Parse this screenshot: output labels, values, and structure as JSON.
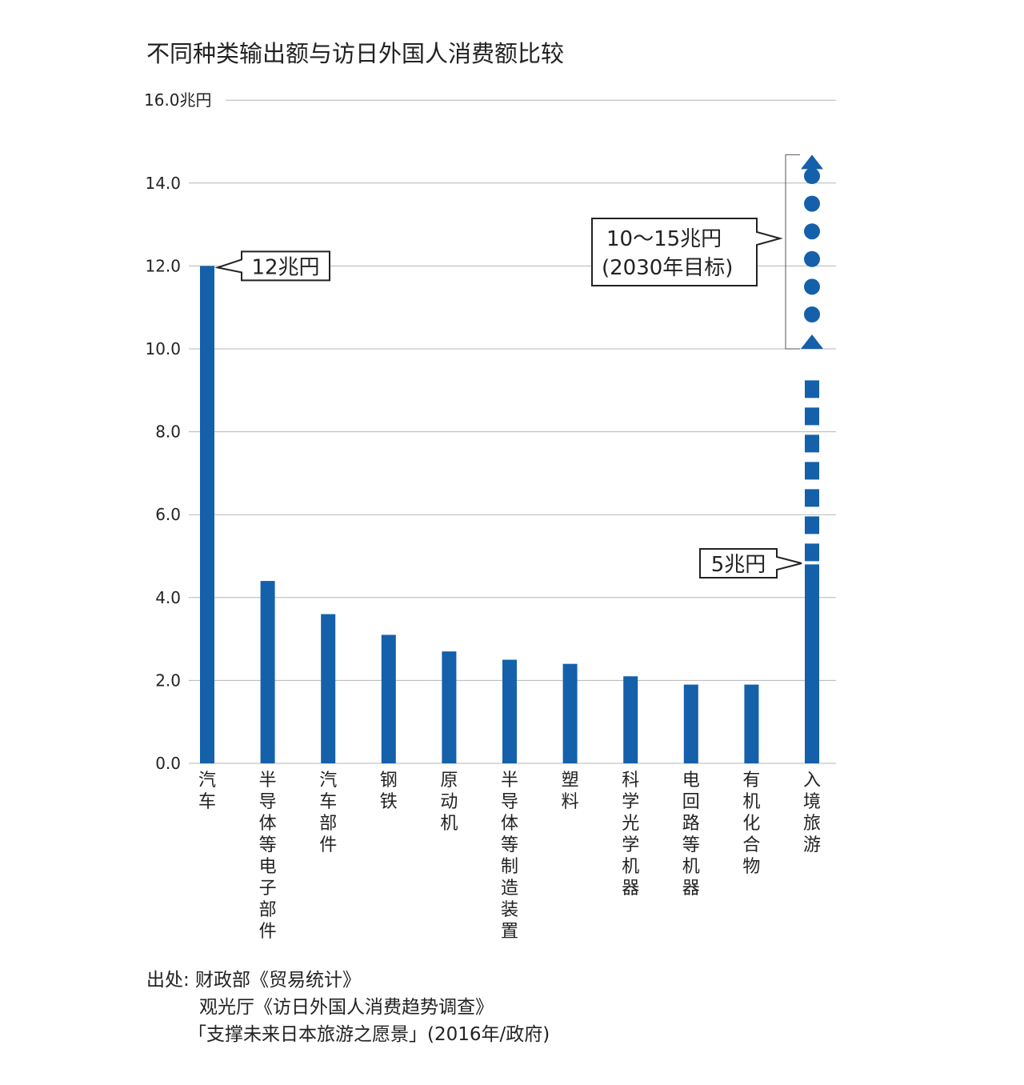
{
  "chart_data": {
    "type": "bar",
    "title": "不同种类输出额与访日外国人消费额比较",
    "y_unit_label": "16.0兆円",
    "ylim": [
      0,
      16
    ],
    "yticks": [
      "0.0",
      "2.0",
      "4.0",
      "6.0",
      "8.0",
      "10.0",
      "12.0",
      "14.0"
    ],
    "grid": true,
    "color": "#1560aa",
    "categories": [
      "汽车",
      "半导体等电子部件",
      "汽车部件",
      "钢铁",
      "原动机",
      "半导体等制造装置",
      "塑料",
      "科学光学机器",
      "电回路等机器",
      "有机化合物",
      "入境旅游"
    ],
    "values": [
      12.0,
      4.4,
      3.6,
      3.1,
      2.7,
      2.5,
      2.4,
      2.1,
      1.9,
      1.9,
      4.8
    ],
    "inbound_target": {
      "from": 10,
      "to": 15
    },
    "annotations": {
      "car": "12兆円",
      "inbound": "5兆円",
      "target_line1": "10～15兆円",
      "target_line2": "(2030年目标)"
    }
  },
  "source": {
    "line1": "出处: 财政部《贸易统计》",
    "line2": "观光厅《访日外国人消费趋势调查》",
    "line3": "「支撑未来日本旅游之愿景」(2016年/政府)"
  }
}
